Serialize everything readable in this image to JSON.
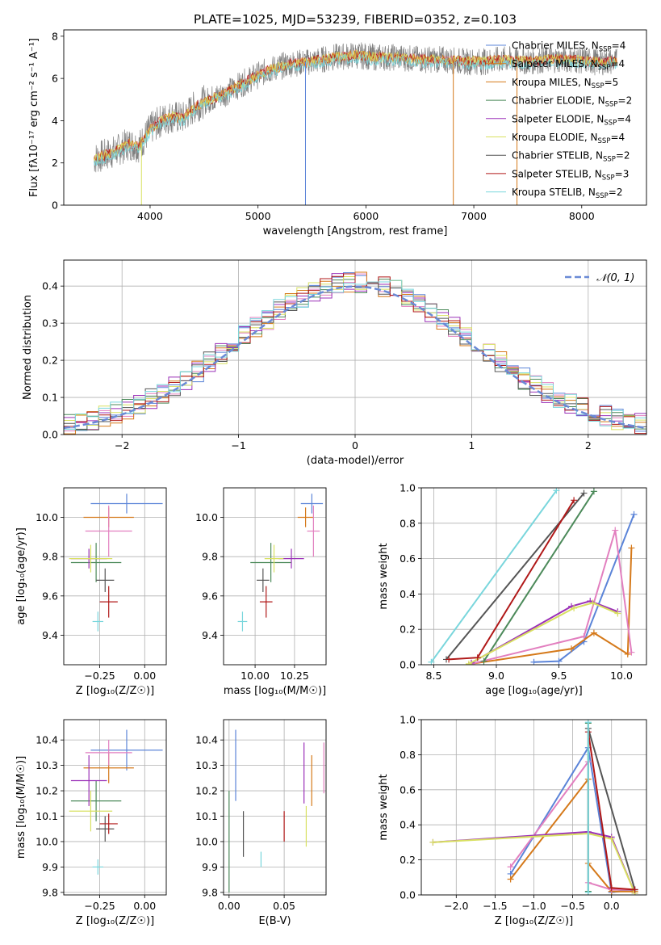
{
  "figure_title": "PLATE=1025, MJD=53239, FIBERID=0352, z=0.103",
  "colors": {
    "Chabrier MILES": "#5b84d8",
    "Salpeter MILES": "#e07a7a",
    "Kroupa MILES": "#d5791a",
    "Chabrier ELODIE": "#4c8a5a",
    "Salpeter ELODIE": "#9b30b8",
    "Kroupa ELODIE": "#d8e060",
    "Chabrier STELIB": "#555555",
    "Salpeter STELIB": "#b01818",
    "Kroupa STELIB": "#79d6dc",
    "spectrum": "#808080",
    "pink": "#e27fbf"
  },
  "chart_data": [
    {
      "id": "spectrum",
      "type": "line",
      "title": "PLATE=1025, MJD=53239, FIBERID=0352, z=0.103",
      "xlabel": "wavelength [Angstrom, rest frame]",
      "ylabel": "Flux [fλ10⁻¹⁷ erg cm⁻² s⁻¹ A⁻¹]",
      "xlim": [
        3200,
        8600
      ],
      "ylim": [
        0,
        8.3
      ],
      "xticks": [
        "4000",
        "5000",
        "6000",
        "7000",
        "8000"
      ],
      "yticks": [
        "0",
        "2",
        "4",
        "6",
        "8"
      ],
      "legend_position": "right",
      "legend": [
        "Chabrier MILES, N_SSP=4",
        "Salpeter MILES, N_SSP=4",
        "Kroupa MILES, N_SSP=5",
        "Chabrier ELODIE, N_SSP=2",
        "Salpeter ELODIE, N_SSP=4",
        "Kroupa ELODIE, N_SSP=4",
        "Chabrier STELIB, N_SSP=2",
        "Salpeter STELIB, N_SSP=3",
        "Kroupa STELIB, N_SSP=2"
      ],
      "legend_colors": [
        "Chabrier MILES",
        "Kroupa MILES",
        "Kroupa MILES",
        "Chabrier ELODIE",
        "Salpeter ELODIE",
        "Kroupa ELODIE",
        "Chabrier STELIB",
        "Salpeter STELIB",
        "Kroupa STELIB"
      ],
      "continuum": [
        [
          3480,
          2.2
        ],
        [
          3600,
          2.4
        ],
        [
          3700,
          2.6
        ],
        [
          3800,
          2.9
        ],
        [
          3900,
          2.8
        ],
        [
          4000,
          3.6
        ],
        [
          4100,
          4.0
        ],
        [
          4200,
          4.2
        ],
        [
          4300,
          4.1
        ],
        [
          4400,
          4.6
        ],
        [
          4500,
          4.9
        ],
        [
          4700,
          5.3
        ],
        [
          4900,
          5.9
        ],
        [
          5100,
          6.4
        ],
        [
          5300,
          6.7
        ],
        [
          5500,
          6.8
        ],
        [
          5700,
          7.0
        ],
        [
          5900,
          7.1
        ],
        [
          6100,
          7.0
        ],
        [
          6300,
          7.0
        ],
        [
          6500,
          6.9
        ],
        [
          6700,
          6.9
        ],
        [
          6900,
          6.8
        ],
        [
          7100,
          6.8
        ],
        [
          7300,
          6.9
        ],
        [
          7500,
          6.8
        ],
        [
          7700,
          6.9
        ],
        [
          7900,
          6.9
        ],
        [
          8100,
          6.8
        ],
        [
          8300,
          6.8
        ]
      ]
    },
    {
      "id": "residuals",
      "type": "bar",
      "xlabel": "(data-model)/error",
      "ylabel": "Normed distribution",
      "xlim": [
        -2.5,
        2.5
      ],
      "ylim": [
        0,
        0.47
      ],
      "xticks": [
        "−2",
        "−1",
        "0",
        "1",
        "2"
      ],
      "yticks": [
        "0.0",
        "0.1",
        "0.2",
        "0.3",
        "0.4"
      ],
      "legend": [
        "𝒩(0, 1)"
      ],
      "legend_position": "top-right"
    },
    {
      "id": "age-vs-Z",
      "type": "scatter",
      "xlabel": "Z [log₁₀(Z/Z☉)]",
      "ylabel": "age  [log₁₀(age/yr)]",
      "xlim": [
        -0.45,
        0.12
      ],
      "ylim": [
        9.25,
        10.15
      ],
      "xticks": [
        "−0.25",
        "0.00"
      ],
      "yticks": [
        "9.4",
        "9.6",
        "9.8",
        "10.0"
      ]
    },
    {
      "id": "age-vs-mass",
      "type": "scatter",
      "xlabel": "mass [log₁₀(M/M☉)]",
      "xlim": [
        9.8,
        10.45
      ],
      "ylim": [
        9.25,
        10.15
      ],
      "xticks": [
        "10.00",
        "10.25"
      ],
      "yticks": [
        "9.4",
        "9.6",
        "9.8",
        "10.0"
      ]
    },
    {
      "id": "massweight-vs-age",
      "type": "line",
      "xlabel": "age  [log₁₀(age/yr)]",
      "ylabel": "mass weight",
      "xlim": [
        8.4,
        10.2
      ],
      "ylim": [
        0,
        1
      ],
      "xticks": [
        "8.5",
        "9.0",
        "9.5",
        "10.0"
      ],
      "yticks": [
        "0.0",
        "0.2",
        "0.4",
        "0.6",
        "0.8",
        "1.0"
      ]
    },
    {
      "id": "mass-vs-Z",
      "type": "scatter",
      "xlabel": "Z [log₁₀(Z/Z☉)]",
      "ylabel": "mass [log₁₀(M/M☉)]",
      "xlim": [
        -0.45,
        0.12
      ],
      "ylim": [
        9.79,
        10.48
      ],
      "xticks": [
        "−0.25",
        "0.00"
      ],
      "yticks": [
        "9.8",
        "9.9",
        "10.0",
        "10.1",
        "10.2",
        "10.3",
        "10.4"
      ]
    },
    {
      "id": "mass-vs-EBV",
      "type": "scatter",
      "xlabel": "E(B-V)",
      "xlim": [
        -0.005,
        0.088
      ],
      "ylim": [
        9.79,
        10.48
      ],
      "xticks": [
        "0.00",
        "0.05"
      ],
      "yticks": [
        "9.8",
        "9.9",
        "10.0",
        "10.1",
        "10.2",
        "10.3",
        "10.4"
      ]
    },
    {
      "id": "massweight-vs-Z",
      "type": "line",
      "xlabel": "Z [log₁₀(Z/Z☉)]",
      "ylabel": "mass weight",
      "xlim": [
        -2.45,
        0.45
      ],
      "ylim": [
        0,
        1
      ],
      "xticks": [
        "−2.0",
        "−1.5",
        "−1.0",
        "−0.5",
        "0.0"
      ],
      "yticks": [
        "0.0",
        "0.2",
        "0.4",
        "0.6",
        "0.8",
        "1.0"
      ]
    }
  ],
  "errorbars_ageZ": [
    {
      "c": "Chabrier MILES",
      "x": -0.1,
      "xe": 0.2,
      "y": 10.07,
      "ye": 0.05
    },
    {
      "c": "Kroupa MILES",
      "x": -0.2,
      "xe": 0.14,
      "y": 10.0,
      "ye": 0.05
    },
    {
      "c": "pink",
      "x": -0.2,
      "xe": 0.13,
      "y": 9.93,
      "ye": 0.13
    },
    {
      "c": "Chabrier ELODIE",
      "x": -0.27,
      "xe": 0.14,
      "y": 9.77,
      "ye": 0.1
    },
    {
      "c": "Salpeter ELODIE",
      "x": -0.31,
      "xe": 0.1,
      "y": 9.79,
      "ye": 0.05
    },
    {
      "c": "Kroupa ELODIE",
      "x": -0.3,
      "xe": 0.12,
      "y": 9.79,
      "ye": 0.07
    },
    {
      "c": "Chabrier STELIB",
      "x": -0.22,
      "xe": 0.05,
      "y": 9.68,
      "ye": 0.06
    },
    {
      "c": "Salpeter STELIB",
      "x": -0.2,
      "xe": 0.05,
      "y": 9.57,
      "ye": 0.08
    },
    {
      "c": "Kroupa STELIB",
      "x": -0.26,
      "xe": 0.03,
      "y": 9.47,
      "ye": 0.05
    }
  ],
  "errorbars_ageMass": [
    {
      "c": "Chabrier MILES",
      "x": 10.36,
      "xe": 0.07,
      "y": 10.07,
      "ye": 0.05
    },
    {
      "c": "Kroupa MILES",
      "x": 10.32,
      "xe": 0.05,
      "y": 10.0,
      "ye": 0.05
    },
    {
      "c": "pink",
      "x": 10.37,
      "xe": 0.04,
      "y": 9.93,
      "ye": 0.13
    },
    {
      "c": "Chabrier ELODIE",
      "x": 10.1,
      "xe": 0.13,
      "y": 9.77,
      "ye": 0.1
    },
    {
      "c": "Salpeter ELODIE",
      "x": 10.23,
      "xe": 0.08,
      "y": 9.79,
      "ye": 0.05
    },
    {
      "c": "Kroupa ELODIE",
      "x": 10.12,
      "xe": 0.06,
      "y": 9.79,
      "ye": 0.07
    },
    {
      "c": "Chabrier STELIB",
      "x": 10.05,
      "xe": 0.04,
      "y": 9.68,
      "ye": 0.06
    },
    {
      "c": "Salpeter STELIB",
      "x": 10.07,
      "xe": 0.04,
      "y": 9.57,
      "ye": 0.08
    },
    {
      "c": "Kroupa STELIB",
      "x": 9.92,
      "xe": 0.03,
      "y": 9.47,
      "ye": 0.05
    }
  ],
  "errorbars_massZ": [
    {
      "c": "Chabrier MILES",
      "x": -0.1,
      "xe": 0.2,
      "y": 10.36,
      "ye": 0.08
    },
    {
      "c": "Kroupa MILES",
      "x": -0.2,
      "xe": 0.14,
      "y": 10.29,
      "ye": 0.06
    },
    {
      "c": "pink",
      "x": -0.2,
      "xe": 0.13,
      "y": 10.35,
      "ye": 0.05
    },
    {
      "c": "Chabrier ELODIE",
      "x": -0.27,
      "xe": 0.14,
      "y": 10.16,
      "ye": 0.08
    },
    {
      "c": "Salpeter ELODIE",
      "x": -0.31,
      "xe": 0.1,
      "y": 10.24,
      "ye": 0.1
    },
    {
      "c": "Kroupa ELODIE",
      "x": -0.3,
      "xe": 0.12,
      "y": 10.12,
      "ye": 0.08
    },
    {
      "c": "Chabrier STELIB",
      "x": -0.22,
      "xe": 0.05,
      "y": 10.05,
      "ye": 0.05
    },
    {
      "c": "Salpeter STELIB",
      "x": -0.2,
      "xe": 0.05,
      "y": 10.07,
      "ye": 0.04
    },
    {
      "c": "Kroupa STELIB",
      "x": -0.26,
      "xe": 0.03,
      "y": 9.9,
      "ye": 0.03
    }
  ],
  "errorbars_massEBV": [
    {
      "c": "Chabrier MILES",
      "x": 0.006,
      "y": 10.3,
      "ye": 0.14
    },
    {
      "c": "Kroupa MILES",
      "x": 0.075,
      "y": 10.24,
      "ye": 0.1
    },
    {
      "c": "pink",
      "x": 0.086,
      "y": 10.29,
      "ye": 0.1
    },
    {
      "c": "Chabrier ELODIE",
      "x": 0.0,
      "y": 10.0,
      "ye": 0.2
    },
    {
      "c": "Salpeter ELODIE",
      "x": 0.068,
      "y": 10.27,
      "ye": 0.12
    },
    {
      "c": "Kroupa ELODIE",
      "x": 0.07,
      "y": 10.06,
      "ye": 0.08
    },
    {
      "c": "Chabrier STELIB",
      "x": 0.013,
      "y": 10.03,
      "ye": 0.09
    },
    {
      "c": "Salpeter STELIB",
      "x": 0.05,
      "y": 10.06,
      "ye": 0.06
    },
    {
      "c": "Kroupa STELIB",
      "x": 0.029,
      "y": 9.93,
      "ye": 0.03
    }
  ],
  "weights_age": [
    {
      "c": "Chabrier MILES",
      "pts": [
        [
          9.3,
          0.015
        ],
        [
          9.5,
          0.02
        ],
        [
          9.7,
          0.13
        ],
        [
          10.1,
          0.85
        ]
      ]
    },
    {
      "c": "Kroupa MILES",
      "pts": [
        [
          8.8,
          0.005
        ],
        [
          9.6,
          0.09
        ],
        [
          9.78,
          0.18
        ],
        [
          10.05,
          0.06
        ],
        [
          10.08,
          0.66
        ]
      ]
    },
    {
      "c": "pink",
      "pts": [
        [
          8.8,
          0.005
        ],
        [
          9.7,
          0.16
        ],
        [
          9.95,
          0.76
        ],
        [
          10.08,
          0.07
        ]
      ]
    },
    {
      "c": "Chabrier ELODIE",
      "pts": [
        [
          8.9,
          0.02
        ],
        [
          9.78,
          0.98
        ]
      ]
    },
    {
      "c": "Salpeter ELODIE",
      "pts": [
        [
          8.8,
          0.01
        ],
        [
          9.6,
          0.33
        ],
        [
          9.75,
          0.36
        ],
        [
          9.97,
          0.3
        ]
      ]
    },
    {
      "c": "Kroupa ELODIE",
      "pts": [
        [
          8.78,
          0.005
        ],
        [
          9.62,
          0.32
        ],
        [
          9.77,
          0.35
        ],
        [
          9.97,
          0.29
        ]
      ]
    },
    {
      "c": "Chabrier STELIB",
      "pts": [
        [
          8.6,
          0.03
        ],
        [
          9.7,
          0.97
        ]
      ]
    },
    {
      "c": "Salpeter STELIB",
      "pts": [
        [
          8.62,
          0.03
        ],
        [
          8.85,
          0.04
        ],
        [
          9.62,
          0.93
        ]
      ]
    },
    {
      "c": "Kroupa STELIB",
      "pts": [
        [
          8.48,
          0.015
        ],
        [
          9.48,
          0.985
        ]
      ]
    }
  ],
  "weights_Z": [
    {
      "c": "Chabrier MILES",
      "pts": [
        [
          -1.3,
          0.12
        ],
        [
          -0.3,
          0.84
        ],
        [
          0.0,
          0.015
        ],
        [
          0.3,
          0.03
        ]
      ]
    },
    {
      "c": "Kroupa MILES",
      "pts": [
        [
          -1.3,
          0.09
        ],
        [
          -0.3,
          0.66
        ],
        [
          -0.3,
          0.18
        ],
        [
          0.0,
          0.02
        ],
        [
          0.3,
          0.02
        ]
      ]
    },
    {
      "c": "pink",
      "pts": [
        [
          -1.3,
          0.16
        ],
        [
          -0.3,
          0.76
        ],
        [
          -0.3,
          0.07
        ],
        [
          0.0,
          0.03
        ],
        [
          0.3,
          0.03
        ]
      ]
    },
    {
      "c": "Chabrier ELODIE",
      "pts": [
        [
          -0.3,
          0.98
        ],
        [
          -0.3,
          0.02
        ]
      ]
    },
    {
      "c": "Salpeter ELODIE",
      "pts": [
        [
          -2.3,
          0.3
        ],
        [
          -0.3,
          0.36
        ],
        [
          0.0,
          0.33
        ],
        [
          0.3,
          0.01
        ]
      ]
    },
    {
      "c": "Kroupa ELODIE",
      "pts": [
        [
          -2.3,
          0.3
        ],
        [
          -0.3,
          0.35
        ],
        [
          0.0,
          0.32
        ],
        [
          0.3,
          0.01
        ]
      ]
    },
    {
      "c": "Chabrier STELIB",
      "pts": [
        [
          -0.3,
          0.95
        ],
        [
          0.3,
          0.03
        ]
      ]
    },
    {
      "c": "Salpeter STELIB",
      "pts": [
        [
          -0.3,
          0.93
        ],
        [
          0.0,
          0.04
        ],
        [
          0.3,
          0.03
        ]
      ]
    },
    {
      "c": "Kroupa STELIB",
      "pts": [
        [
          -0.3,
          0.985
        ],
        [
          -0.3,
          0.015
        ]
      ]
    }
  ]
}
